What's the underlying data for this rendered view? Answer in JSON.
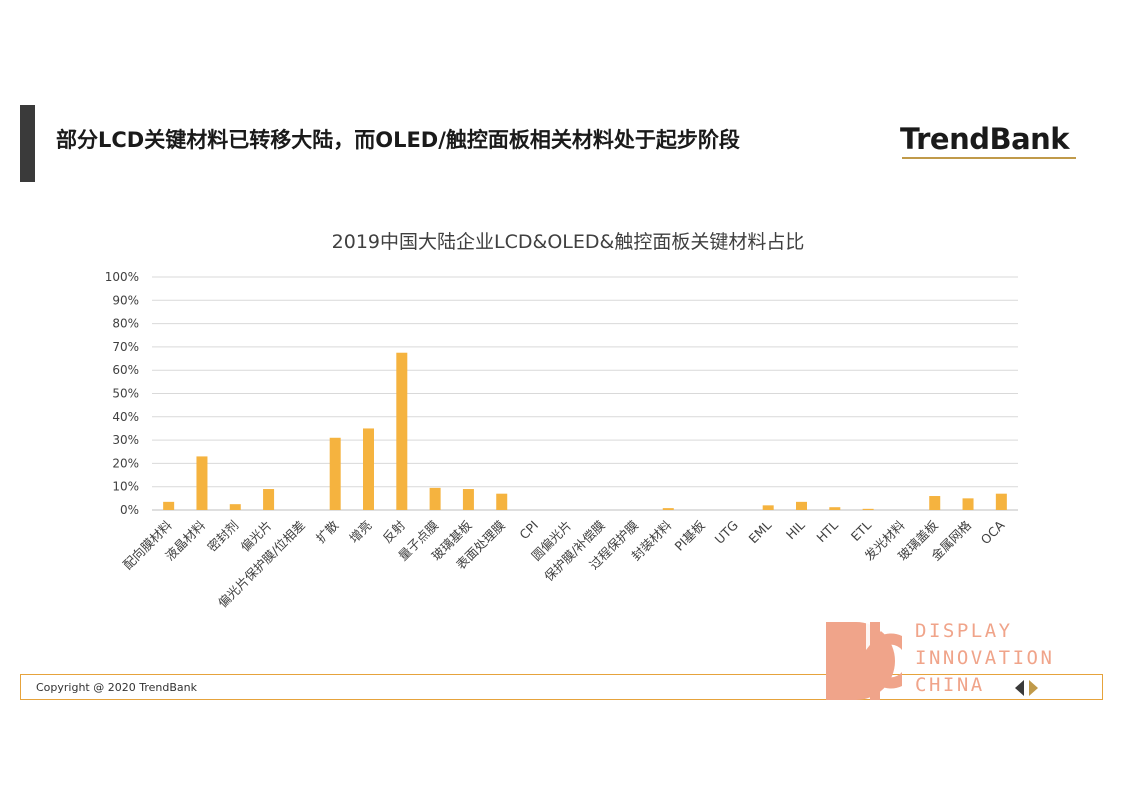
{
  "header": {
    "title": "部分LCD关键材料已转移大陆，而OLED/触控面板相关材料处于起步阶段",
    "brand": "TrendBank"
  },
  "footer": {
    "copyright": "Copyright @ 2020 TrendBank",
    "logo_lines": [
      "DISPLAY",
      "INNOVATION",
      "CHINA"
    ]
  },
  "colors": {
    "bar": "#f5b33f",
    "grid": "#d9d9d9",
    "footer_border": "#e6a33c",
    "dic_logo": "#f0a48a",
    "accent_bar": "#3a3a3a"
  },
  "icons": {
    "nav_prev": "triangle-left-icon",
    "nav_next": "triangle-right-icon"
  },
  "chart_data": {
    "type": "bar",
    "title": "2019中国大陆企业LCD&OLED&触控面板关键材料占比",
    "xlabel": "",
    "ylabel": "",
    "ylim": [
      0,
      100
    ],
    "yticks": [
      "0%",
      "10%",
      "20%",
      "30%",
      "40%",
      "50%",
      "60%",
      "70%",
      "80%",
      "90%",
      "100%"
    ],
    "grid": true,
    "legend": "none",
    "categories": [
      "配向膜材料",
      "液晶材料",
      "密封剂",
      "偏光片",
      "偏光片保护膜/位相差",
      "扩散",
      "增亮",
      "反射",
      "量子点膜",
      "玻璃基板",
      "表面处理膜",
      "CPI",
      "圆偏光片",
      "保护膜/补偿膜",
      "过程保护膜",
      "封装材料",
      "PI基板",
      "UTG",
      "EML",
      "HIL",
      "HTL",
      "ETL",
      "发光材料",
      "玻璃盖板",
      "金属网格",
      "OCA"
    ],
    "values": [
      3.5,
      23,
      2.5,
      9,
      0,
      31,
      35,
      67.5,
      9.5,
      9,
      7,
      0,
      0,
      0,
      0,
      0.8,
      0,
      0,
      2,
      3.5,
      1.2,
      0.5,
      0,
      6,
      5,
      7
    ]
  }
}
